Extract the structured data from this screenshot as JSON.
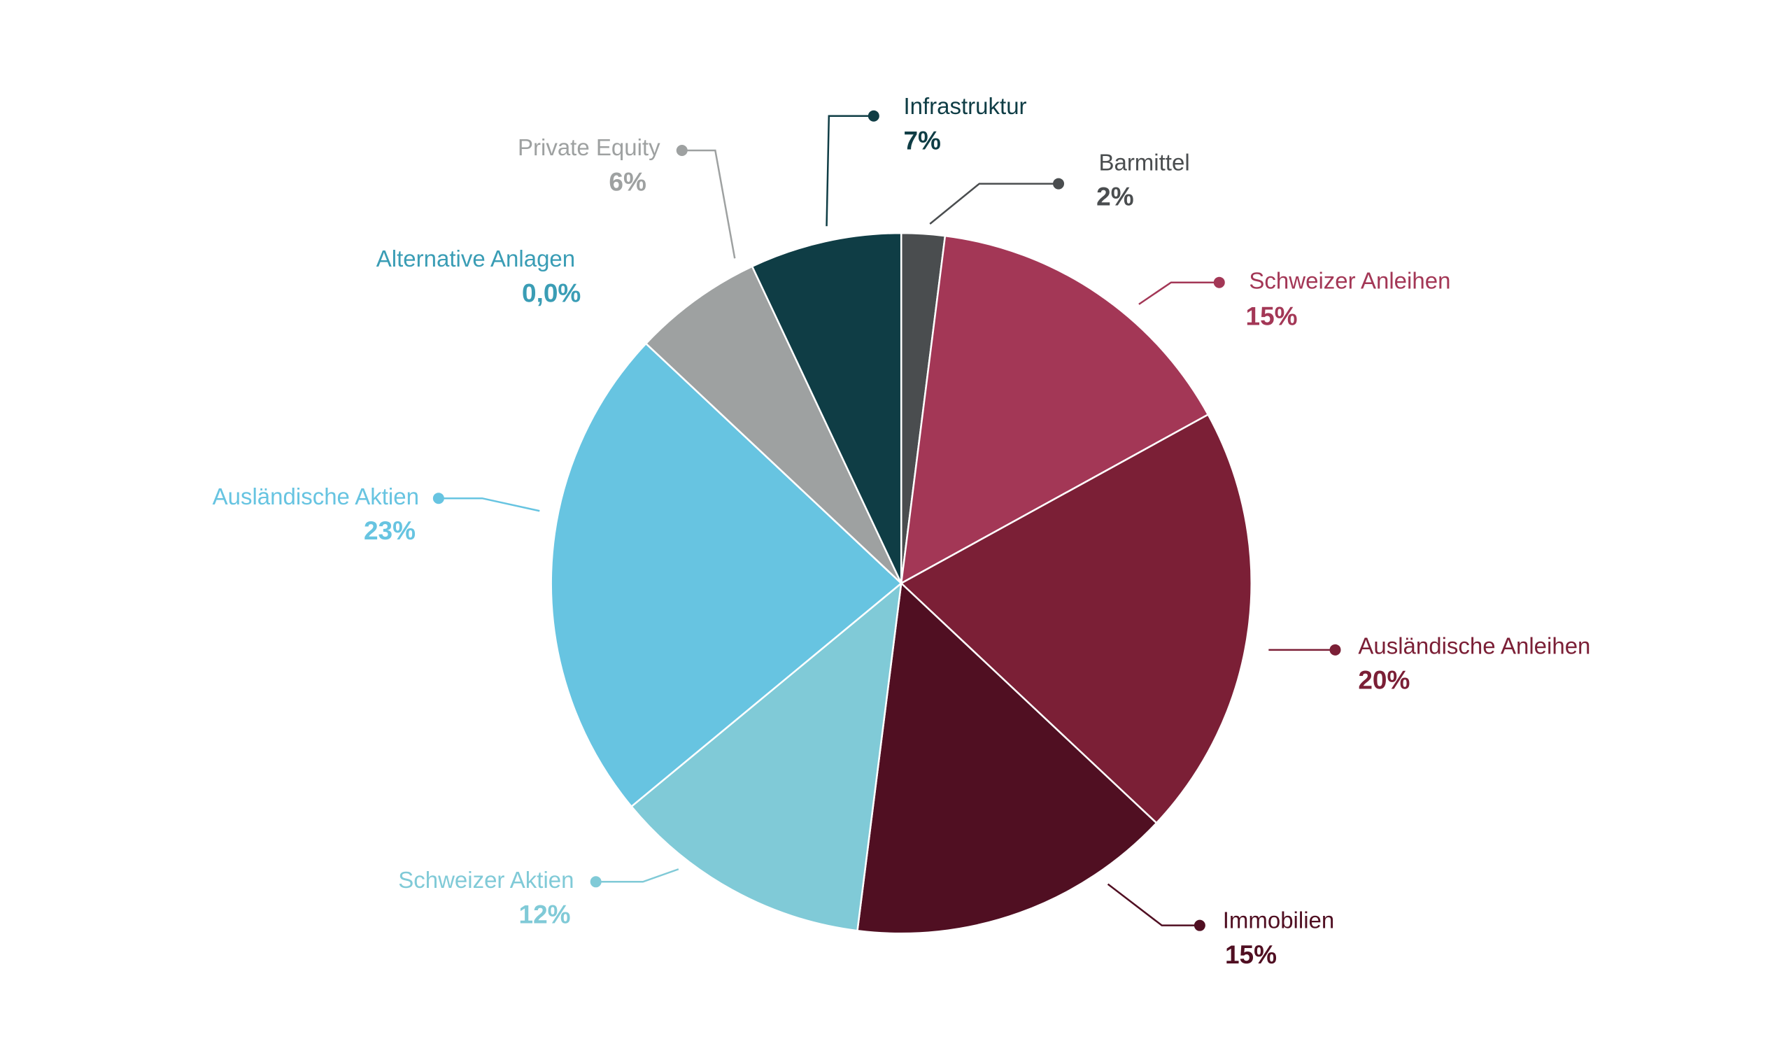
{
  "chart_data": {
    "type": "pie",
    "categories": [
      "Barmittel",
      "Schweizer Anleihen",
      "Ausländische Anleihen",
      "Immobilien",
      "Schweizer Aktien",
      "Ausländische Aktien",
      "Alternative Anlagen",
      "Private Equity",
      "Infrastruktur"
    ],
    "values": [
      2,
      15,
      20,
      15,
      12,
      23,
      0,
      6,
      7
    ],
    "value_labels": [
      "2%",
      "15%",
      "20%",
      "15%",
      "12%",
      "23%",
      "0,0%",
      "6%",
      "7%"
    ],
    "colors": [
      "#4a4d4f",
      "#a33756",
      "#7b1f36",
      "#500f22",
      "#80cad7",
      "#67c4e1",
      "#3a9db5",
      "#9ea1a1",
      "#0f3d45"
    ]
  }
}
